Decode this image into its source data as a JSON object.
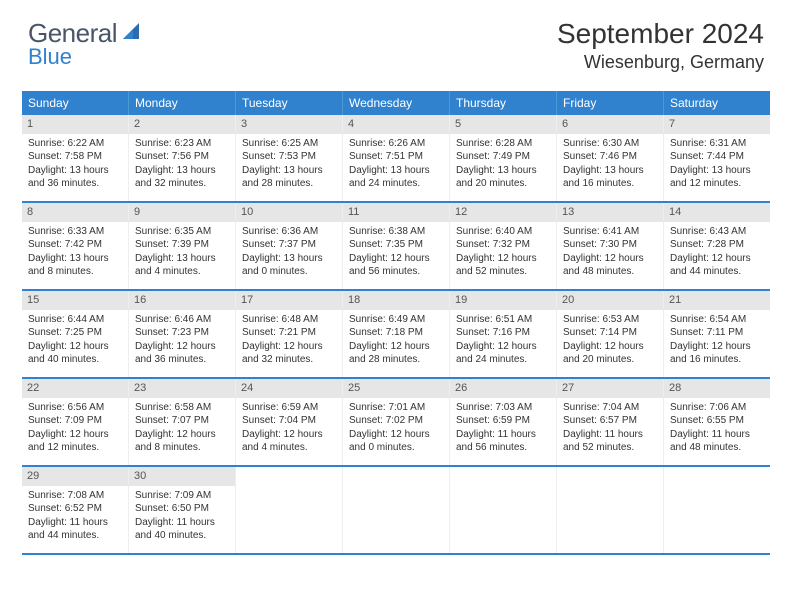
{
  "brand": {
    "text1": "General",
    "text2": "Blue"
  },
  "title": "September 2024",
  "location": "Wiesenburg, Germany",
  "colors": {
    "header_bg": "#3182ce",
    "daynum_bg": "#e6e6e6",
    "row_border": "#3182ce",
    "text": "#333333"
  },
  "weekdays": [
    "Sunday",
    "Monday",
    "Tuesday",
    "Wednesday",
    "Thursday",
    "Friday",
    "Saturday"
  ],
  "weeks": [
    [
      {
        "day": "1",
        "sunrise": "Sunrise: 6:22 AM",
        "sunset": "Sunset: 7:58 PM",
        "daylight": "Daylight: 13 hours and 36 minutes."
      },
      {
        "day": "2",
        "sunrise": "Sunrise: 6:23 AM",
        "sunset": "Sunset: 7:56 PM",
        "daylight": "Daylight: 13 hours and 32 minutes."
      },
      {
        "day": "3",
        "sunrise": "Sunrise: 6:25 AM",
        "sunset": "Sunset: 7:53 PM",
        "daylight": "Daylight: 13 hours and 28 minutes."
      },
      {
        "day": "4",
        "sunrise": "Sunrise: 6:26 AM",
        "sunset": "Sunset: 7:51 PM",
        "daylight": "Daylight: 13 hours and 24 minutes."
      },
      {
        "day": "5",
        "sunrise": "Sunrise: 6:28 AM",
        "sunset": "Sunset: 7:49 PM",
        "daylight": "Daylight: 13 hours and 20 minutes."
      },
      {
        "day": "6",
        "sunrise": "Sunrise: 6:30 AM",
        "sunset": "Sunset: 7:46 PM",
        "daylight": "Daylight: 13 hours and 16 minutes."
      },
      {
        "day": "7",
        "sunrise": "Sunrise: 6:31 AM",
        "sunset": "Sunset: 7:44 PM",
        "daylight": "Daylight: 13 hours and 12 minutes."
      }
    ],
    [
      {
        "day": "8",
        "sunrise": "Sunrise: 6:33 AM",
        "sunset": "Sunset: 7:42 PM",
        "daylight": "Daylight: 13 hours and 8 minutes."
      },
      {
        "day": "9",
        "sunrise": "Sunrise: 6:35 AM",
        "sunset": "Sunset: 7:39 PM",
        "daylight": "Daylight: 13 hours and 4 minutes."
      },
      {
        "day": "10",
        "sunrise": "Sunrise: 6:36 AM",
        "sunset": "Sunset: 7:37 PM",
        "daylight": "Daylight: 13 hours and 0 minutes."
      },
      {
        "day": "11",
        "sunrise": "Sunrise: 6:38 AM",
        "sunset": "Sunset: 7:35 PM",
        "daylight": "Daylight: 12 hours and 56 minutes."
      },
      {
        "day": "12",
        "sunrise": "Sunrise: 6:40 AM",
        "sunset": "Sunset: 7:32 PM",
        "daylight": "Daylight: 12 hours and 52 minutes."
      },
      {
        "day": "13",
        "sunrise": "Sunrise: 6:41 AM",
        "sunset": "Sunset: 7:30 PM",
        "daylight": "Daylight: 12 hours and 48 minutes."
      },
      {
        "day": "14",
        "sunrise": "Sunrise: 6:43 AM",
        "sunset": "Sunset: 7:28 PM",
        "daylight": "Daylight: 12 hours and 44 minutes."
      }
    ],
    [
      {
        "day": "15",
        "sunrise": "Sunrise: 6:44 AM",
        "sunset": "Sunset: 7:25 PM",
        "daylight": "Daylight: 12 hours and 40 minutes."
      },
      {
        "day": "16",
        "sunrise": "Sunrise: 6:46 AM",
        "sunset": "Sunset: 7:23 PM",
        "daylight": "Daylight: 12 hours and 36 minutes."
      },
      {
        "day": "17",
        "sunrise": "Sunrise: 6:48 AM",
        "sunset": "Sunset: 7:21 PM",
        "daylight": "Daylight: 12 hours and 32 minutes."
      },
      {
        "day": "18",
        "sunrise": "Sunrise: 6:49 AM",
        "sunset": "Sunset: 7:18 PM",
        "daylight": "Daylight: 12 hours and 28 minutes."
      },
      {
        "day": "19",
        "sunrise": "Sunrise: 6:51 AM",
        "sunset": "Sunset: 7:16 PM",
        "daylight": "Daylight: 12 hours and 24 minutes."
      },
      {
        "day": "20",
        "sunrise": "Sunrise: 6:53 AM",
        "sunset": "Sunset: 7:14 PM",
        "daylight": "Daylight: 12 hours and 20 minutes."
      },
      {
        "day": "21",
        "sunrise": "Sunrise: 6:54 AM",
        "sunset": "Sunset: 7:11 PM",
        "daylight": "Daylight: 12 hours and 16 minutes."
      }
    ],
    [
      {
        "day": "22",
        "sunrise": "Sunrise: 6:56 AM",
        "sunset": "Sunset: 7:09 PM",
        "daylight": "Daylight: 12 hours and 12 minutes."
      },
      {
        "day": "23",
        "sunrise": "Sunrise: 6:58 AM",
        "sunset": "Sunset: 7:07 PM",
        "daylight": "Daylight: 12 hours and 8 minutes."
      },
      {
        "day": "24",
        "sunrise": "Sunrise: 6:59 AM",
        "sunset": "Sunset: 7:04 PM",
        "daylight": "Daylight: 12 hours and 4 minutes."
      },
      {
        "day": "25",
        "sunrise": "Sunrise: 7:01 AM",
        "sunset": "Sunset: 7:02 PM",
        "daylight": "Daylight: 12 hours and 0 minutes."
      },
      {
        "day": "26",
        "sunrise": "Sunrise: 7:03 AM",
        "sunset": "Sunset: 6:59 PM",
        "daylight": "Daylight: 11 hours and 56 minutes."
      },
      {
        "day": "27",
        "sunrise": "Sunrise: 7:04 AM",
        "sunset": "Sunset: 6:57 PM",
        "daylight": "Daylight: 11 hours and 52 minutes."
      },
      {
        "day": "28",
        "sunrise": "Sunrise: 7:06 AM",
        "sunset": "Sunset: 6:55 PM",
        "daylight": "Daylight: 11 hours and 48 minutes."
      }
    ],
    [
      {
        "day": "29",
        "sunrise": "Sunrise: 7:08 AM",
        "sunset": "Sunset: 6:52 PM",
        "daylight": "Daylight: 11 hours and 44 minutes."
      },
      {
        "day": "30",
        "sunrise": "Sunrise: 7:09 AM",
        "sunset": "Sunset: 6:50 PM",
        "daylight": "Daylight: 11 hours and 40 minutes."
      },
      null,
      null,
      null,
      null,
      null
    ]
  ]
}
